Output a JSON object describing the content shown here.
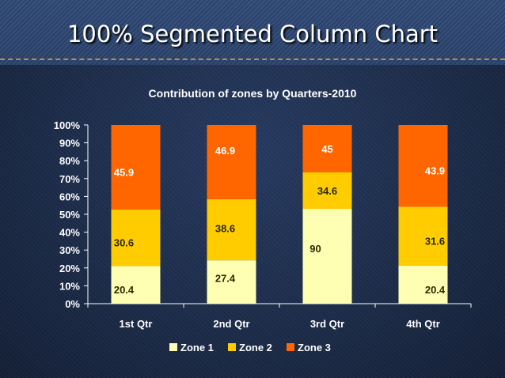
{
  "slide_title": "100% Segmented Column Chart",
  "colors": {
    "zone1": "#FFFFB3",
    "zone2": "#FFCC00",
    "zone3": "#FF6600",
    "axis": "#FFFFFF",
    "label_dark": "#2B2B00",
    "label_light": "#FFFFFF"
  },
  "chart_data": {
    "type": "bar",
    "stacked": "percent",
    "title": "Contribution of zones by Quarters-2010",
    "categories": [
      "1st Qtr",
      "2nd Qtr",
      "3rd Qtr",
      "4th Qtr"
    ],
    "series": [
      {
        "name": "Zone 1",
        "values": [
          20.4,
          27.4,
          90,
          20.4
        ]
      },
      {
        "name": "Zone 2",
        "values": [
          30.6,
          38.6,
          34.6,
          31.6
        ]
      },
      {
        "name": "Zone 3",
        "values": [
          45.9,
          46.9,
          45,
          43.9
        ]
      }
    ],
    "y_ticks": [
      "0%",
      "10%",
      "20%",
      "30%",
      "40%",
      "50%",
      "60%",
      "70%",
      "80%",
      "90%",
      "100%"
    ],
    "ylim": [
      0,
      100
    ],
    "legend_position": "bottom"
  }
}
